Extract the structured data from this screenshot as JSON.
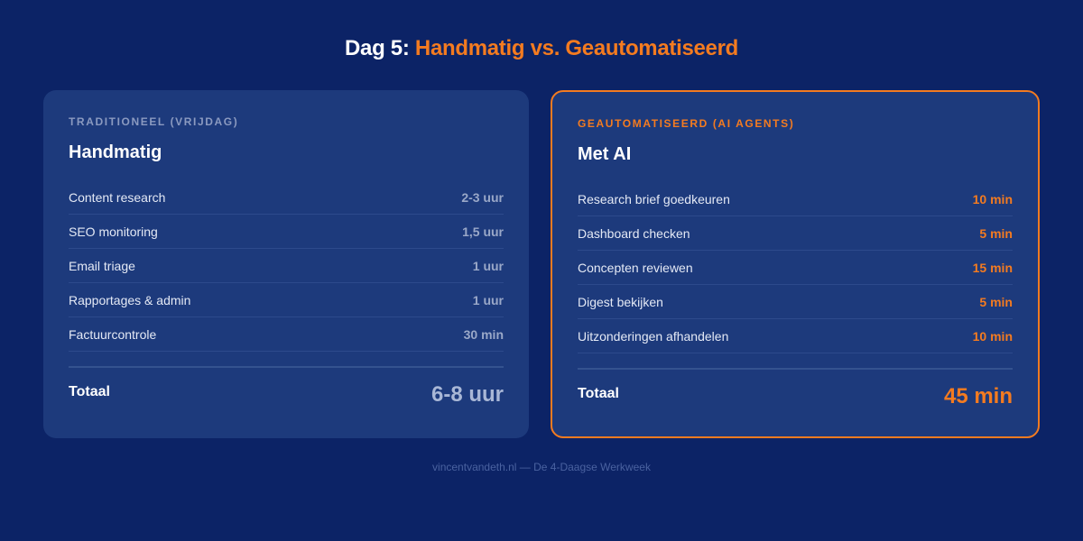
{
  "title": {
    "prefix": "Dag 5:",
    "highlight": "Handmatig vs. Geautomatiseerd"
  },
  "panels": [
    {
      "label": "TRADITIONEEL (VRIJDAG)",
      "heading": "Handmatig",
      "rows": [
        [
          "Content research",
          "2-3 uur"
        ],
        [
          "SEO monitoring",
          "1,5 uur"
        ],
        [
          "Email triage",
          "1 uur"
        ],
        [
          "Rapportages & admin",
          "1 uur"
        ],
        [
          "Factuurcontrole",
          "30 min"
        ]
      ],
      "total_label": "Totaal",
      "total_value": "6-8 uur"
    },
    {
      "label": "GEAUTOMATISEERD (AI AGENTS)",
      "heading": "Met AI",
      "rows": [
        [
          "Research brief goedkeuren",
          "10 min"
        ],
        [
          "Dashboard checken",
          "5 min"
        ],
        [
          "Concepten reviewen",
          "15 min"
        ],
        [
          "Digest bekijken",
          "5 min"
        ],
        [
          "Uitzonderingen afhandelen",
          "10 min"
        ]
      ],
      "total_label": "Totaal",
      "total_value": "45 min"
    }
  ],
  "footer": "vincentvandeth.nl — De 4-Daagse Werkweek"
}
